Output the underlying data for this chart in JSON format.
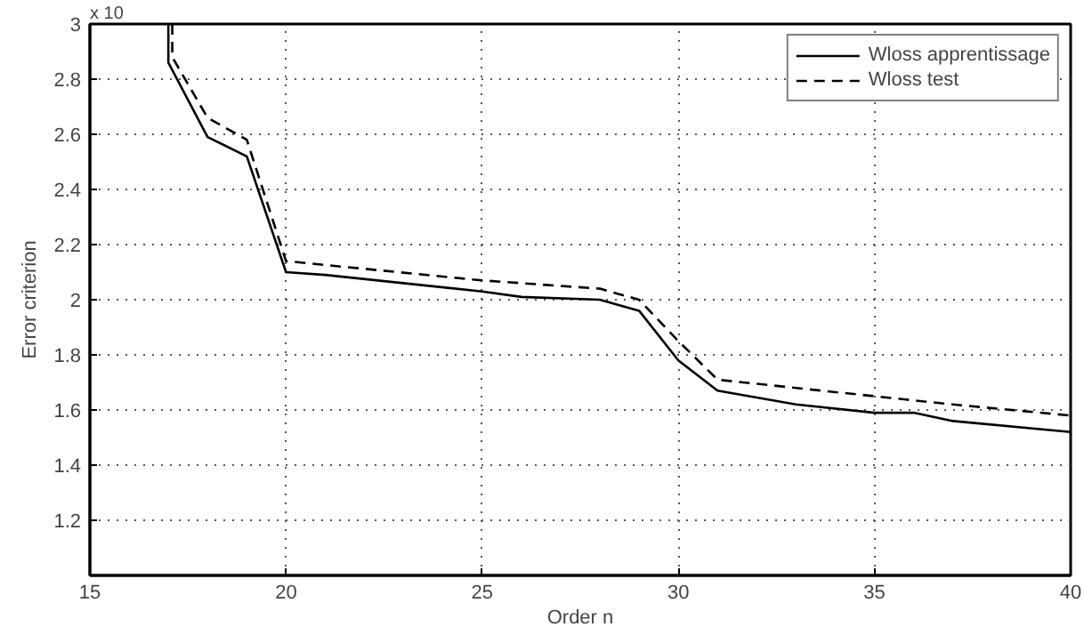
{
  "chart_data": {
    "type": "line",
    "xlabel": "Order n",
    "ylabel": "Error criterion",
    "annotations": [
      "x 10"
    ],
    "xlim": [
      15,
      40
    ],
    "ylim": [
      1,
      3
    ],
    "xticks": [
      15,
      20,
      25,
      30,
      35,
      40
    ],
    "yticks": [
      1.2,
      1.4,
      1.6,
      1.8,
      2,
      2.2,
      2.4,
      2.6,
      2.8,
      3
    ],
    "grid": true,
    "legend": "top right",
    "series": [
      {
        "name": "Wloss apprentissage",
        "color": "#000000",
        "line_style": "solid",
        "x": [
          17,
          17,
          18,
          19,
          20,
          21,
          25,
          26,
          28,
          29,
          30,
          31,
          33,
          35,
          36,
          37,
          40
        ],
        "values": [
          3,
          2.86,
          2.59,
          2.52,
          2.1,
          2.09,
          2.03,
          2.01,
          2.0,
          1.96,
          1.78,
          1.67,
          1.62,
          1.59,
          1.59,
          1.56,
          1.52
        ]
      },
      {
        "name": "Wloss test",
        "color": "#000000",
        "line_style": "dashed",
        "x": [
          17.1,
          17.1,
          18,
          19,
          20,
          25,
          28,
          29,
          30,
          31,
          35,
          37,
          40
        ],
        "values": [
          3,
          2.88,
          2.66,
          2.58,
          2.14,
          2.07,
          2.04,
          2.0,
          1.85,
          1.71,
          1.65,
          1.62,
          1.58
        ]
      }
    ]
  }
}
